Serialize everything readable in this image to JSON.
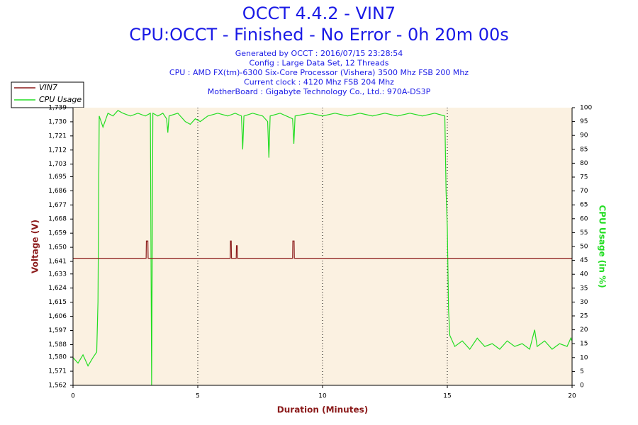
{
  "chart_data": {
    "type": "line",
    "title": "OCCT 4.4.2 - VIN7",
    "subtitle": "CPU:OCCT - Finished - No Error - 0h 20m 00s",
    "info": [
      "Generated by OCCT : 2016/07/15 23:28:54",
      "Config : Large Data Set, 12 Threads",
      "CPU : AMD FX(tm)-6300 Six-Core Processor (Vishera) 3500 Mhz FSB 200 Mhz",
      "Current clock : 4120 Mhz FSB 204 Mhz",
      "MotherBoard : Gigabyte Technology Co., Ltd.: 970A-DS3P"
    ],
    "xlabel": "Duration (Minutes)",
    "ylabel": "Voltage (V)",
    "y2label": "CPU Usage (in %)",
    "xlim": [
      0,
      20
    ],
    "xticks": [
      0,
      5,
      10,
      15,
      20
    ],
    "ylim": [
      1.562,
      1.739
    ],
    "yticks": [
      {
        "value": 1.562,
        "label": "1,562"
      },
      {
        "value": 1.571,
        "label": "1,571"
      },
      {
        "value": 1.58,
        "label": "1,580"
      },
      {
        "value": 1.588,
        "label": "1,588"
      },
      {
        "value": 1.597,
        "label": "1,597"
      },
      {
        "value": 1.606,
        "label": "1,606"
      },
      {
        "value": 1.615,
        "label": "1,615"
      },
      {
        "value": 1.624,
        "label": "1,624"
      },
      {
        "value": 1.633,
        "label": "1,633"
      },
      {
        "value": 1.641,
        "label": "1,641"
      },
      {
        "value": 1.65,
        "label": "1,650"
      },
      {
        "value": 1.659,
        "label": "1,659"
      },
      {
        "value": 1.668,
        "label": "1,668"
      },
      {
        "value": 1.677,
        "label": "1,677"
      },
      {
        "value": 1.686,
        "label": "1,686"
      },
      {
        "value": 1.695,
        "label": "1,695"
      },
      {
        "value": 1.703,
        "label": "1,703"
      },
      {
        "value": 1.712,
        "label": "1,712"
      },
      {
        "value": 1.721,
        "label": "1,721"
      },
      {
        "value": 1.73,
        "label": "1,730"
      },
      {
        "value": 1.739,
        "label": "1,739"
      }
    ],
    "y2lim": [
      0,
      100
    ],
    "y2ticks": [
      0,
      5,
      10,
      15,
      20,
      25,
      30,
      35,
      40,
      45,
      50,
      55,
      60,
      65,
      70,
      75,
      80,
      85,
      90,
      95,
      100
    ],
    "grid": "x",
    "legend": "top-left",
    "series": [
      {
        "name": "VIN7",
        "color": "#8b1a1a",
        "x": [
          0,
          2.93,
          2.94,
          3.0,
          3.01,
          6.3,
          6.31,
          6.34,
          6.35,
          6.54,
          6.55,
          6.58,
          6.59,
          8.8,
          8.81,
          8.86,
          8.87,
          20
        ],
        "values": [
          1.643,
          1.643,
          1.654,
          1.654,
          1.643,
          1.643,
          1.654,
          1.654,
          1.643,
          1.643,
          1.651,
          1.651,
          1.643,
          1.643,
          1.654,
          1.654,
          1.643,
          1.643
        ]
      },
      {
        "name": "CPU Usage",
        "color": "#22dd22",
        "axis": "y2",
        "x": [
          0,
          0.2,
          0.4,
          0.6,
          0.8,
          0.95,
          1.0,
          1.05,
          1.2,
          1.4,
          1.6,
          1.8,
          2.0,
          2.3,
          2.6,
          2.9,
          3.1,
          3.15,
          3.2,
          3.4,
          3.6,
          3.75,
          3.8,
          3.85,
          4.2,
          4.5,
          4.7,
          4.9,
          5.1,
          5.4,
          5.8,
          6.2,
          6.5,
          6.75,
          6.8,
          6.85,
          7.2,
          7.6,
          7.8,
          7.85,
          7.9,
          8.3,
          8.8,
          8.85,
          8.9,
          9.5,
          10,
          10.5,
          11,
          11.5,
          12,
          12.5,
          13,
          13.5,
          14,
          14.5,
          14.9,
          14.95,
          15.0,
          15.05,
          15.1,
          15.3,
          15.6,
          15.9,
          16.2,
          16.5,
          16.8,
          17.1,
          17.4,
          17.7,
          18.0,
          18.3,
          18.5,
          18.6,
          18.9,
          19.2,
          19.5,
          19.8,
          19.95,
          20
        ],
        "values": [
          10,
          8,
          11,
          7,
          10,
          12,
          30,
          97,
          93,
          98,
          97,
          99,
          98,
          97,
          98,
          97,
          98,
          0,
          98,
          97,
          98,
          96,
          91,
          97,
          98,
          95,
          94,
          96,
          95,
          97,
          98,
          97,
          98,
          97,
          85,
          97,
          98,
          97,
          95,
          82,
          97,
          98,
          96,
          87,
          97,
          98,
          97,
          98,
          97,
          98,
          97,
          98,
          97,
          98,
          97,
          98,
          97,
          70,
          57,
          27,
          18,
          14,
          16,
          13,
          17,
          14,
          15,
          13,
          16,
          14,
          15,
          13,
          20,
          14,
          16,
          13,
          15,
          14,
          17,
          16
        ]
      }
    ]
  }
}
